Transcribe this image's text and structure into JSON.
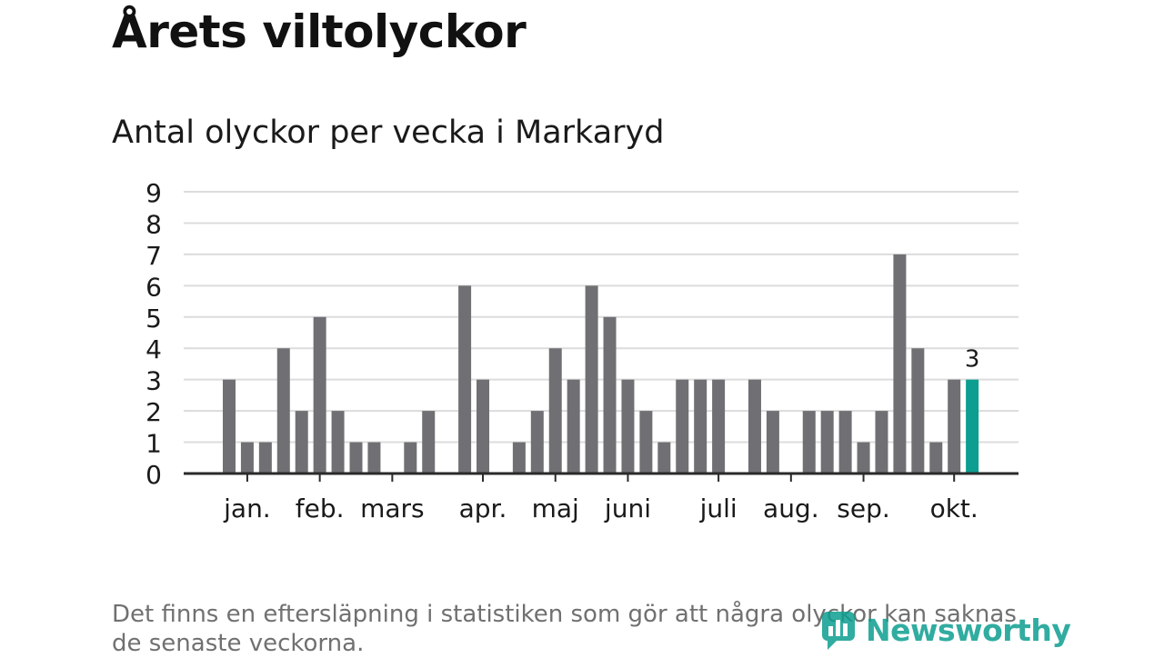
{
  "header": {
    "title": "Årets viltolyckor",
    "subtitle": "Antal olyckor per vecka i Markaryd"
  },
  "chart_data": {
    "type": "bar",
    "title": "Årets viltolyckor",
    "subtitle": "Antal olyckor per vecka i Markaryd",
    "xlabel": "",
    "ylabel": "",
    "ylim": [
      0,
      9
    ],
    "yticks": [
      0,
      1,
      2,
      3,
      4,
      5,
      6,
      7,
      8,
      9
    ],
    "grid": true,
    "weeks": [
      1,
      2,
      3,
      4,
      5,
      6,
      7,
      8,
      9,
      10,
      11,
      12,
      13,
      14,
      15,
      16,
      17,
      18,
      19,
      20,
      21,
      22,
      23,
      24,
      25,
      26,
      27,
      28,
      29,
      30,
      31,
      32,
      33,
      34,
      35,
      36,
      37,
      38,
      39,
      40,
      41,
      42,
      43,
      44
    ],
    "values": [
      0,
      3,
      1,
      1,
      4,
      2,
      5,
      2,
      1,
      1,
      0,
      1,
      2,
      0,
      6,
      3,
      0,
      1,
      2,
      4,
      3,
      6,
      5,
      3,
      2,
      1,
      3,
      3,
      3,
      0,
      3,
      2,
      0,
      2,
      2,
      2,
      1,
      2,
      7,
      4,
      1,
      3,
      3,
      0
    ],
    "highlight": {
      "week": 43,
      "value": 3,
      "label": "3"
    },
    "month_labels": [
      {
        "label": "jan.",
        "week": 3
      },
      {
        "label": "feb.",
        "week": 7
      },
      {
        "label": "mars",
        "week": 11
      },
      {
        "label": "apr.",
        "week": 16
      },
      {
        "label": "maj",
        "week": 20
      },
      {
        "label": "juni",
        "week": 24
      },
      {
        "label": "juli",
        "week": 29
      },
      {
        "label": "aug.",
        "week": 33
      },
      {
        "label": "sep.",
        "week": 37
      },
      {
        "label": "okt.",
        "week": 42
      }
    ]
  },
  "colors": {
    "bar": "#707074",
    "highlight_bar": "#0c9e90",
    "grid": "#dcdcdc",
    "axis": "#2a2a2a",
    "tick_text": "#1a1a1a"
  },
  "footnote": "Det finns en eftersläpning i statistiken som gör att några olyckor kan saknas de senaste veckorna.",
  "brand": {
    "name": "Newsworthy",
    "icon": "newsworthy-logo-icon"
  }
}
